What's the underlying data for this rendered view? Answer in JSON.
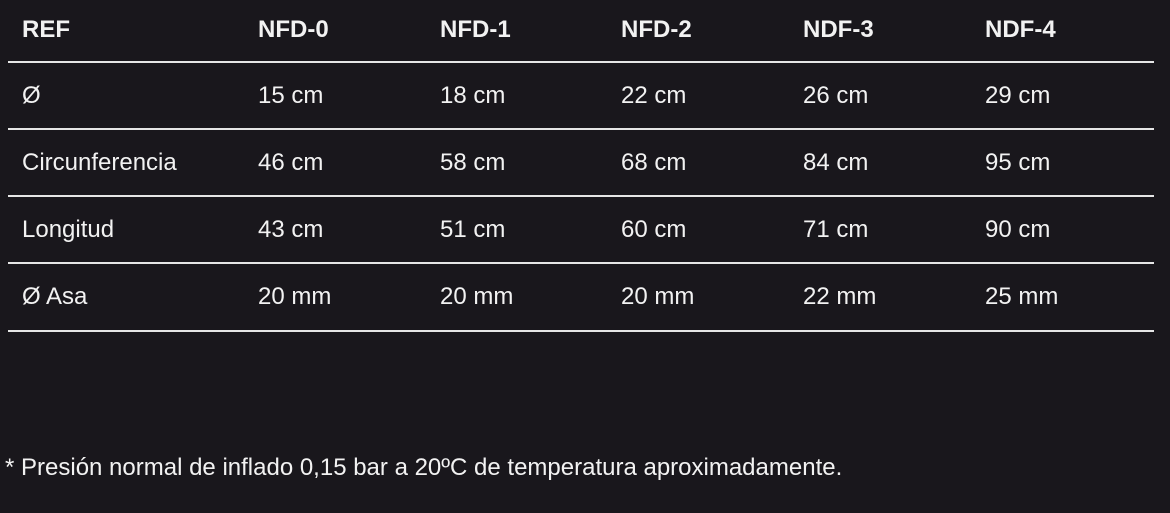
{
  "table": {
    "headers": [
      "REF",
      "NFD-0",
      "NFD-1",
      "NFD-2",
      "NDF-3",
      "NDF-4"
    ],
    "rows": [
      [
        "Ø",
        "15 cm",
        "18 cm",
        "22 cm",
        "26 cm",
        "29 cm"
      ],
      [
        "Circunferencia",
        "46 cm",
        "58 cm",
        "68 cm",
        "84 cm",
        "95 cm"
      ],
      [
        "Longitud",
        "43 cm",
        "51 cm",
        "60 cm",
        "71 cm",
        "90 cm"
      ],
      [
        "Ø Asa",
        "20 mm",
        "20 mm",
        "20 mm",
        "22 mm",
        "25 mm"
      ]
    ]
  },
  "footnote": "* Presión normal de inflado 0,15 bar a 20ºC de temperatura aproximadamente."
}
